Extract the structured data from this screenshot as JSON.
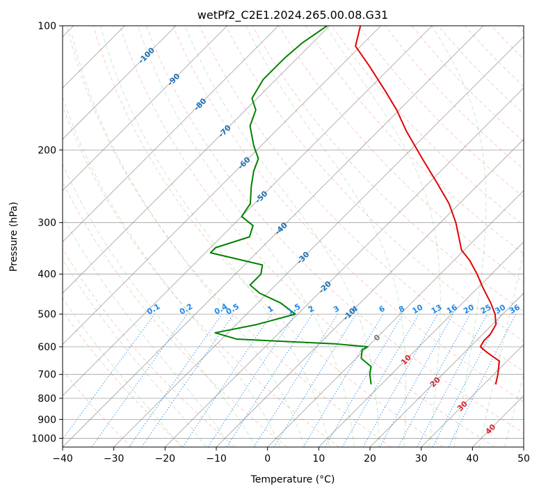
{
  "chart_data": {
    "type": "line",
    "title": "wetPf2_C2E1.2024.265.00.08.G31",
    "xlabel": "Temperature (°C)",
    "ylabel": "Pressure (hPa)",
    "xlim": [
      -40,
      50
    ],
    "ylim": [
      1050,
      100
    ],
    "yscale": "log",
    "grid": true,
    "x_ticks": [
      -40,
      -30,
      -20,
      -10,
      0,
      10,
      20,
      30,
      40,
      50
    ],
    "y_ticks": [
      100,
      200,
      300,
      400,
      500,
      600,
      700,
      800,
      900,
      1000
    ],
    "skew_deg": 45,
    "series": [
      {
        "color": "#e00000",
        "points": [
          {
            "p": 740,
            "t": 32.3
          },
          {
            "p": 700,
            "t": 30.8
          },
          {
            "p": 650,
            "t": 28.5
          },
          {
            "p": 620,
            "t": 24.5
          },
          {
            "p": 600,
            "t": 22.0
          },
          {
            "p": 580,
            "t": 21.5
          },
          {
            "p": 560,
            "t": 21.5
          },
          {
            "p": 530,
            "t": 20.7
          },
          {
            "p": 500,
            "t": 18.5
          },
          {
            "p": 470,
            "t": 15.5
          },
          {
            "p": 430,
            "t": 10.8
          },
          {
            "p": 400,
            "t": 7.2
          },
          {
            "p": 370,
            "t": 3.0
          },
          {
            "p": 350,
            "t": -0.5
          },
          {
            "p": 300,
            "t": -7.0
          },
          {
            "p": 270,
            "t": -12.0
          },
          {
            "p": 240,
            "t": -18.5
          },
          {
            "p": 210,
            "t": -26.0
          },
          {
            "p": 180,
            "t": -34.5
          },
          {
            "p": 160,
            "t": -40.5
          },
          {
            "p": 145,
            "t": -46.0
          },
          {
            "p": 125,
            "t": -54.5
          },
          {
            "p": 112,
            "t": -61.0
          },
          {
            "p": 100,
            "t": -64.0
          }
        ]
      },
      {
        "color": "#008000",
        "points": [
          {
            "p": 740,
            "t": 8.0
          },
          {
            "p": 700,
            "t": 5.8
          },
          {
            "p": 670,
            "t": 4.5
          },
          {
            "p": 640,
            "t": 1.0
          },
          {
            "p": 610,
            "t": -0.5
          },
          {
            "p": 600,
            "t": 0.0
          },
          {
            "p": 590,
            "t": -7.0
          },
          {
            "p": 575,
            "t": -27.0
          },
          {
            "p": 555,
            "t": -32.5
          },
          {
            "p": 530,
            "t": -26.0
          },
          {
            "p": 500,
            "t": -20.5
          },
          {
            "p": 470,
            "t": -25.5
          },
          {
            "p": 445,
            "t": -31.5
          },
          {
            "p": 425,
            "t": -35.0
          },
          {
            "p": 400,
            "t": -35.0
          },
          {
            "p": 380,
            "t": -36.5
          },
          {
            "p": 355,
            "t": -49.0
          },
          {
            "p": 345,
            "t": -49.0
          },
          {
            "p": 325,
            "t": -44.5
          },
          {
            "p": 305,
            "t": -46.0
          },
          {
            "p": 290,
            "t": -50.0
          },
          {
            "p": 270,
            "t": -50.8
          },
          {
            "p": 245,
            "t": -54.0
          },
          {
            "p": 225,
            "t": -56.5
          },
          {
            "p": 210,
            "t": -58.0
          },
          {
            "p": 195,
            "t": -61.5
          },
          {
            "p": 175,
            "t": -66.0
          },
          {
            "p": 160,
            "t": -68.0
          },
          {
            "p": 150,
            "t": -71.0
          },
          {
            "p": 135,
            "t": -72.5
          },
          {
            "p": 120,
            "t": -72.5
          },
          {
            "p": 110,
            "t": -72.0
          },
          {
            "p": 100,
            "t": -70.5
          }
        ]
      }
    ],
    "dry_adiabat_labels": [
      "-100",
      "-90",
      "-80",
      "-70",
      "-60",
      "-50",
      "-40",
      "-30",
      "-20",
      "-10",
      "0",
      "10",
      "20",
      "30",
      "40"
    ],
    "mixing_ratio_labels": [
      "0.1",
      "0.2",
      "0.4",
      "0.5",
      "1",
      "1.5",
      "2",
      "3",
      "4",
      "6",
      "8",
      "10",
      "13",
      "16",
      "20",
      "25",
      "30",
      "36"
    ]
  }
}
